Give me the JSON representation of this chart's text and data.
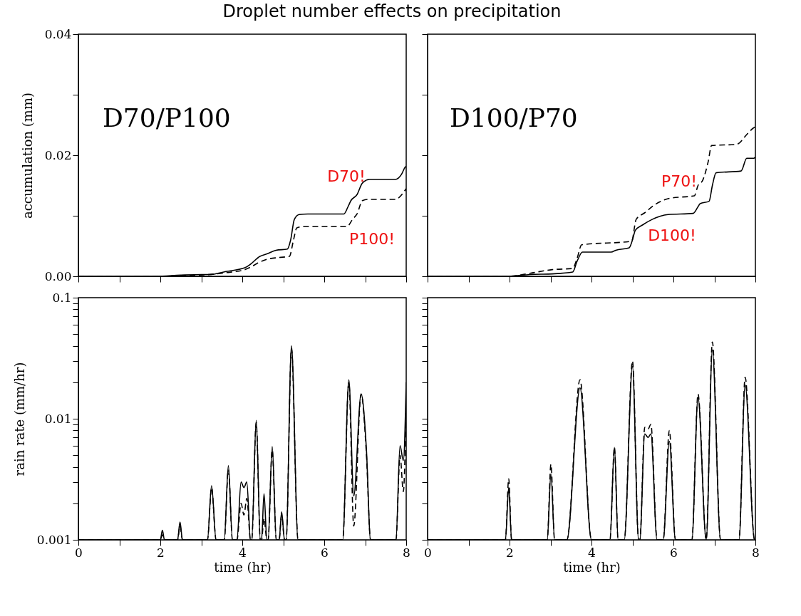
{
  "chart_data": [
    {
      "type": "line",
      "title": "Droplet number effects on precipitation",
      "ylabel": "accumulation (mm)",
      "xlim": [
        0,
        8
      ],
      "ylim": [
        0,
        0.04
      ],
      "xticks": [
        0,
        {
          "value": 1,
          "label": null
        },
        2,
        {
          "value": 3,
          "label": null
        },
        4,
        {
          "value": 5,
          "label": null
        },
        6,
        {
          "value": 7,
          "label": null
        },
        8
      ],
      "yticks": [
        {
          "value": 0,
          "label": "0.00"
        },
        {
          "value": 0.01,
          "label": null
        },
        {
          "value": 0.02,
          "label": "0.02"
        },
        {
          "value": 0.03,
          "label": null
        },
        {
          "value": 0.04,
          "label": "0.04"
        }
      ],
      "tick_labels": "y",
      "grid": false,
      "annotations": [
        "D70/P100",
        "D70!",
        "P100!"
      ],
      "series": [
        {
          "color": "#000000",
          "line_style": "solid",
          "x": [
            0,
            1.9,
            2.5,
            3.0,
            3.2,
            3.6,
            4.06,
            4.2,
            4.43,
            4.6,
            4.82,
            5.1,
            5.18,
            5.27,
            5.39,
            5.6,
            6.48,
            6.58,
            6.65,
            6.8,
            6.93,
            7.1,
            7.73,
            7.89,
            7.97,
            8
          ],
          "values": [
            0,
            0,
            0.0002,
            0.0003,
            0.0003,
            0.0008,
            0.0014,
            0.002,
            0.0033,
            0.0037,
            0.0043,
            0.0045,
            0.006,
            0.0094,
            0.0102,
            0.0103,
            0.0103,
            0.0115,
            0.0125,
            0.0135,
            0.0154,
            0.016,
            0.016,
            0.0169,
            0.018,
            0.0182
          ]
        },
        {
          "color": "#000000",
          "line_style": "dashed",
          "x": [
            0,
            1.9,
            2.5,
            3.0,
            3.6,
            4.06,
            4.2,
            4.38,
            4.6,
            4.88,
            5.15,
            5.25,
            5.33,
            5.46,
            6.55,
            6.7,
            6.8,
            6.93,
            7.07,
            7.73,
            7.95,
            8
          ],
          "values": [
            0,
            0,
            0.0001,
            0.0002,
            0.0006,
            0.0011,
            0.0015,
            0.0022,
            0.0028,
            0.0031,
            0.0033,
            0.006,
            0.008,
            0.0082,
            0.0082,
            0.0095,
            0.0103,
            0.0125,
            0.0127,
            0.0127,
            0.014,
            0.0145
          ]
        }
      ]
    },
    {
      "type": "line",
      "xlim": [
        0,
        8
      ],
      "ylim": [
        0,
        0.04
      ],
      "xticks": [
        0,
        {
          "value": 1,
          "label": null
        },
        2,
        {
          "value": 3,
          "label": null
        },
        4,
        {
          "value": 5,
          "label": null
        },
        6,
        {
          "value": 7,
          "label": null
        },
        8
      ],
      "yticks": [
        0,
        0.01,
        0.02,
        0.03,
        0.04
      ],
      "tick_labels": false,
      "grid": false,
      "annotations": [
        "D100/P70",
        "P70!",
        "D100!"
      ],
      "series": [
        {
          "color": "#000000",
          "line_style": "solid",
          "x": [
            0,
            1.98,
            2.5,
            3.04,
            3.54,
            3.65,
            3.78,
            4.48,
            4.59,
            4.92,
            5.0,
            5.07,
            5.25,
            5.48,
            5.87,
            6.48,
            6.6,
            6.65,
            6.87,
            6.95,
            7.04,
            7.65,
            7.79,
            7.96,
            8
          ],
          "values": [
            0,
            0,
            0.0003,
            0.0004,
            0.0007,
            0.0025,
            0.004,
            0.004,
            0.0043,
            0.0047,
            0.006,
            0.0076,
            0.0085,
            0.0094,
            0.0102,
            0.0104,
            0.0115,
            0.012,
            0.0124,
            0.015,
            0.0171,
            0.0174,
            0.0195,
            0.0195,
            0.0197
          ]
        },
        {
          "color": "#000000",
          "line_style": "dashed",
          "x": [
            0,
            1.98,
            2.5,
            3.04,
            3.54,
            3.65,
            3.76,
            4.98,
            5.09,
            5.3,
            5.54,
            5.92,
            6.51,
            6.6,
            6.71,
            6.85,
            6.93,
            7.54,
            7.8,
            7.95,
            8
          ],
          "values": [
            0,
            0,
            0.0005,
            0.0011,
            0.0013,
            0.003,
            0.0052,
            0.0058,
            0.0094,
            0.0105,
            0.0118,
            0.0129,
            0.0133,
            0.015,
            0.0158,
            0.019,
            0.0216,
            0.0218,
            0.0235,
            0.0245,
            0.0247
          ]
        }
      ]
    },
    {
      "type": "line",
      "xlabel": "time (hr)",
      "ylabel": "rain rate (mm/hr)",
      "log": true,
      "xlim": [
        0,
        8
      ],
      "ylim": [
        0.001,
        0.1
      ],
      "xticks": [
        0,
        {
          "value": 1,
          "label": null
        },
        2,
        {
          "value": 3,
          "label": null
        },
        4,
        {
          "value": 5,
          "label": null
        },
        6,
        {
          "value": 7,
          "label": null
        },
        8
      ],
      "yticks": [
        0.001,
        {
          "value": 0.002,
          "label": null
        },
        {
          "value": 0.003,
          "label": null
        },
        {
          "value": 0.004,
          "label": null
        },
        {
          "value": 0.005,
          "label": null
        },
        {
          "value": 0.006,
          "label": null
        },
        {
          "value": 0.007,
          "label": null
        },
        {
          "value": 0.008,
          "label": null
        },
        {
          "value": 0.009,
          "label": null
        },
        0.01,
        {
          "value": 0.02,
          "label": null
        },
        {
          "value": 0.03,
          "label": null
        },
        {
          "value": 0.04,
          "label": null
        },
        {
          "value": 0.05,
          "label": null
        },
        {
          "value": 0.06,
          "label": null
        },
        {
          "value": 0.07,
          "label": null
        },
        {
          "value": 0.08,
          "label": null
        },
        {
          "value": 0.09,
          "label": null
        },
        0.1
      ],
      "grid": false,
      "series": [
        {
          "color": "#000000",
          "line_style": "solid",
          "x": [
            0,
            2.0,
            2.05,
            2.1,
            2.42,
            2.48,
            2.54,
            3.15,
            3.25,
            3.36,
            3.56,
            3.66,
            3.76,
            3.87,
            3.97,
            4.04,
            4.11,
            4.2,
            4.23,
            4.34,
            4.44,
            4.47,
            4.53,
            4.6,
            4.63,
            4.73,
            4.83,
            4.9,
            4.96,
            5.03,
            5.07,
            5.2,
            5.36,
            6.45,
            6.6,
            6.72,
            6.9,
            7.03,
            7.13,
            7.75,
            7.85,
            7.93,
            8
          ],
          "values": [
            0.001,
            0.001,
            0.0012,
            0.001,
            0.001,
            0.0014,
            0.001,
            0.001,
            0.0028,
            0.001,
            0.001,
            0.0041,
            0.001,
            0.001,
            0.003,
            0.0027,
            0.003,
            0.001,
            0.001,
            0.0097,
            0.001,
            0.001,
            0.0024,
            0.001,
            0.001,
            0.0059,
            0.001,
            0.001,
            0.0017,
            0.001,
            0.001,
            0.04,
            0.001,
            0.001,
            0.021,
            0.0023,
            0.016,
            0.0055,
            0.001,
            0.001,
            0.006,
            0.0045,
            0.02
          ]
        },
        {
          "color": "#000000",
          "line_style": "dashed",
          "x": [
            0,
            2.0,
            2.05,
            2.1,
            2.42,
            2.48,
            2.54,
            3.15,
            3.25,
            3.36,
            3.56,
            3.66,
            3.76,
            3.87,
            3.97,
            4.04,
            4.11,
            4.2,
            4.23,
            4.34,
            4.44,
            4.47,
            4.53,
            4.6,
            4.63,
            4.73,
            4.83,
            4.9,
            4.96,
            5.03,
            5.07,
            5.2,
            5.36,
            6.45,
            6.6,
            6.72,
            6.9,
            7.03,
            7.13,
            7.75,
            7.85,
            7.93,
            8
          ],
          "values": [
            0.001,
            0.001,
            0.0011,
            0.001,
            0.001,
            0.0013,
            0.001,
            0.001,
            0.0027,
            0.001,
            0.001,
            0.0038,
            0.001,
            0.001,
            0.002,
            0.0016,
            0.0022,
            0.001,
            0.001,
            0.0093,
            0.001,
            0.001,
            0.0015,
            0.001,
            0.001,
            0.0055,
            0.001,
            0.001,
            0.0016,
            0.001,
            0.001,
            0.038,
            0.001,
            0.001,
            0.02,
            0.0013,
            0.016,
            0.005,
            0.001,
            0.001,
            0.005,
            0.0025,
            0.014
          ]
        }
      ]
    },
    {
      "type": "line",
      "xlabel": "time (hr)",
      "log": true,
      "xlim": [
        0,
        8
      ],
      "ylim": [
        0.001,
        0.1
      ],
      "xticks": [
        0,
        {
          "value": 1,
          "label": null
        },
        2,
        {
          "value": 3,
          "label": null
        },
        4,
        {
          "value": 5,
          "label": null
        },
        6,
        {
          "value": 7,
          "label": null
        },
        8
      ],
      "yticks": [
        0.001,
        {
          "value": 0.002,
          "label": null
        },
        {
          "value": 0.003,
          "label": null
        },
        {
          "value": 0.004,
          "label": null
        },
        {
          "value": 0.005,
          "label": null
        },
        {
          "value": 0.006,
          "label": null
        },
        {
          "value": 0.007,
          "label": null
        },
        {
          "value": 0.008,
          "label": null
        },
        {
          "value": 0.009,
          "label": null
        },
        0.01,
        {
          "value": 0.02,
          "label": null
        },
        {
          "value": 0.03,
          "label": null
        },
        {
          "value": 0.04,
          "label": null
        },
        {
          "value": 0.05,
          "label": null
        },
        {
          "value": 0.06,
          "label": null
        },
        {
          "value": 0.07,
          "label": null
        },
        {
          "value": 0.08,
          "label": null
        },
        {
          "value": 0.09,
          "label": null
        },
        0.1
      ],
      "tick_labels": "x",
      "grid": false,
      "series": [
        {
          "color": "#000000",
          "line_style": "solid",
          "x": [
            0,
            1.9,
            1.98,
            2.05,
            2.92,
            3.01,
            3.1,
            3.4,
            3.72,
            4.0,
            4.45,
            4.56,
            4.65,
            4.8,
            5.0,
            5.15,
            5.18,
            5.3,
            5.38,
            5.45,
            5.6,
            5.75,
            5.9,
            6.05,
            6.45,
            6.6,
            6.8,
            6.95,
            7.15,
            7.6,
            7.75,
            7.98,
            8
          ],
          "values": [
            0.001,
            0.001,
            0.0027,
            0.001,
            0.001,
            0.0035,
            0.001,
            0.001,
            0.018,
            0.001,
            0.001,
            0.0058,
            0.001,
            0.001,
            0.027,
            0.001,
            0.001,
            0.0075,
            0.007,
            0.0075,
            0.001,
            0.001,
            0.0065,
            0.001,
            0.001,
            0.015,
            0.001,
            0.037,
            0.001,
            0.001,
            0.019,
            0.001,
            0.001
          ]
        },
        {
          "color": "#000000",
          "line_style": "dashed",
          "x": [
            0,
            1.9,
            1.98,
            2.05,
            2.92,
            3.01,
            3.1,
            3.4,
            3.72,
            4.0,
            4.45,
            4.56,
            4.65,
            4.8,
            5.0,
            5.15,
            5.18,
            5.3,
            5.38,
            5.45,
            5.6,
            5.75,
            5.9,
            6.05,
            6.45,
            6.6,
            6.8,
            6.95,
            7.15,
            7.6,
            7.75,
            7.98,
            8
          ],
          "values": [
            0.001,
            0.001,
            0.0032,
            0.001,
            0.001,
            0.0042,
            0.001,
            0.001,
            0.021,
            0.001,
            0.001,
            0.0058,
            0.001,
            0.001,
            0.03,
            0.001,
            0.001,
            0.0085,
            0.0082,
            0.009,
            0.001,
            0.001,
            0.008,
            0.001,
            0.001,
            0.016,
            0.001,
            0.043,
            0.001,
            0.001,
            0.022,
            0.001,
            0.001
          ]
        }
      ]
    }
  ]
}
